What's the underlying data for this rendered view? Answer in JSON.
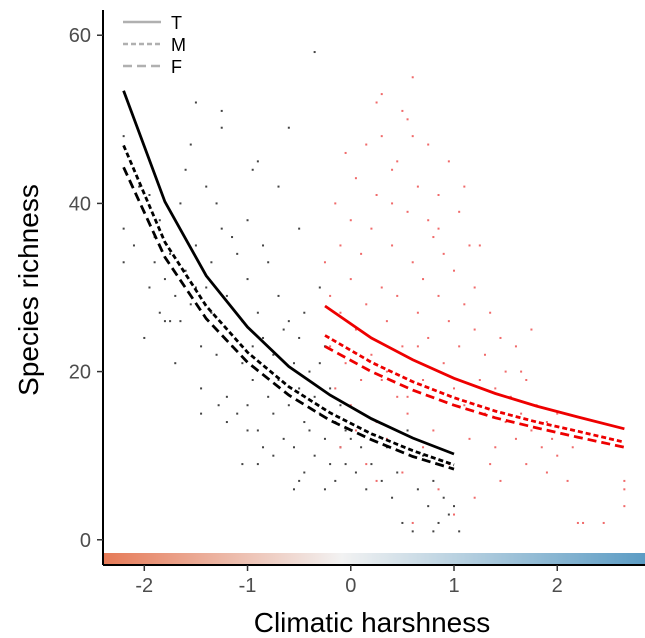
{
  "chart_data": {
    "type": "scatter",
    "xlabel": "Climatic harshness",
    "ylabel": "Species richness",
    "xlim": [
      -2.4,
      2.85
    ],
    "ylim": [
      -3,
      63
    ],
    "x_ticks": [
      -2,
      -1,
      0,
      1,
      2
    ],
    "y_ticks": [
      0,
      20,
      40,
      60
    ],
    "grid": false,
    "legend_position": "top-left",
    "legend": [
      {
        "label": "T",
        "dash": "solid"
      },
      {
        "label": "M",
        "dash": "dotted"
      },
      {
        "label": "F",
        "dash": "dashed"
      }
    ],
    "colorbar": {
      "from": "#e67a57",
      "mid": "#f2f2f2",
      "to": "#5c9cc4",
      "range": [
        -2.4,
        2.85
      ]
    },
    "colors": {
      "group1": "#000000",
      "group2": "#ee0000"
    },
    "curves": [
      {
        "group": "black",
        "type": "T",
        "x": [
          -2.2,
          -1.8,
          -1.4,
          -1.0,
          -0.6,
          -0.2,
          0.2,
          0.6,
          1.0
        ],
        "y": [
          53.4,
          40.2,
          31.4,
          25.3,
          20.6,
          17.2,
          14.4,
          12.1,
          10.2
        ]
      },
      {
        "group": "black",
        "type": "M",
        "x": [
          -2.2,
          -1.8,
          -1.4,
          -1.0,
          -0.6,
          -0.2,
          0.2,
          0.6,
          1.0
        ],
        "y": [
          46.9,
          35.4,
          27.8,
          22.3,
          18.2,
          15.1,
          12.6,
          10.6,
          8.9
        ]
      },
      {
        "group": "black",
        "type": "F",
        "x": [
          -2.2,
          -1.8,
          -1.4,
          -1.0,
          -0.6,
          -0.2,
          0.2,
          0.6,
          1.0
        ],
        "y": [
          44.3,
          33.6,
          26.3,
          21.1,
          17.2,
          14.2,
          11.9,
          9.9,
          8.4
        ]
      },
      {
        "group": "red",
        "type": "T",
        "x": [
          -0.25,
          0.2,
          0.6,
          1.0,
          1.4,
          1.8,
          2.2,
          2.65
        ],
        "y": [
          27.8,
          24.0,
          21.4,
          19.2,
          17.4,
          15.9,
          14.6,
          13.2
        ]
      },
      {
        "group": "red",
        "type": "M",
        "x": [
          -0.25,
          0.2,
          0.6,
          1.0,
          1.4,
          1.8,
          2.2,
          2.65
        ],
        "y": [
          24.3,
          21.1,
          18.8,
          16.9,
          15.3,
          14.0,
          12.9,
          11.6
        ]
      },
      {
        "group": "red",
        "type": "F",
        "x": [
          -0.25,
          0.2,
          0.6,
          1.0,
          1.4,
          1.8,
          2.2,
          2.65
        ],
        "y": [
          23.0,
          20.0,
          17.8,
          16.0,
          14.5,
          13.3,
          12.2,
          11.0
        ]
      }
    ],
    "points_black": [
      [
        -2.2,
        33
      ],
      [
        -2.2,
        37
      ],
      [
        -2.2,
        48
      ],
      [
        -2.1,
        44
      ],
      [
        -2.1,
        35
      ],
      [
        -2.05,
        42
      ],
      [
        -2.0,
        39
      ],
      [
        -1.95,
        41
      ],
      [
        -1.95,
        30
      ],
      [
        -1.9,
        36
      ],
      [
        -1.85,
        27
      ],
      [
        -1.85,
        38
      ],
      [
        -1.8,
        31
      ],
      [
        -1.75,
        34
      ],
      [
        -1.7,
        29
      ],
      [
        -1.7,
        21
      ],
      [
        -1.65,
        26
      ],
      [
        -1.6,
        44
      ],
      [
        -1.6,
        32
      ],
      [
        -1.55,
        28
      ],
      [
        -1.5,
        52
      ],
      [
        -1.5,
        35
      ],
      [
        -1.45,
        23
      ],
      [
        -1.45,
        18
      ],
      [
        -1.4,
        42
      ],
      [
        -1.4,
        30
      ],
      [
        -1.35,
        27
      ],
      [
        -1.3,
        40
      ],
      [
        -1.3,
        22
      ],
      [
        -1.28,
        16
      ],
      [
        -1.25,
        37
      ],
      [
        -1.2,
        29
      ],
      [
        -1.2,
        17
      ],
      [
        -1.15,
        23
      ],
      [
        -1.1,
        34
      ],
      [
        -1.1,
        15
      ],
      [
        -1.05,
        26
      ],
      [
        -1.05,
        21
      ],
      [
        -1.0,
        38
      ],
      [
        -1.0,
        31
      ],
      [
        -1.0,
        16
      ],
      [
        -0.95,
        19
      ],
      [
        -0.9,
        27
      ],
      [
        -0.9,
        13
      ],
      [
        -0.85,
        24
      ],
      [
        -0.8,
        33
      ],
      [
        -0.8,
        17
      ],
      [
        -0.75,
        22
      ],
      [
        -0.75,
        15
      ],
      [
        -0.7,
        29
      ],
      [
        -0.7,
        19
      ],
      [
        -0.65,
        12
      ],
      [
        -0.6,
        26
      ],
      [
        -0.6,
        16
      ],
      [
        -0.55,
        21
      ],
      [
        -0.55,
        11
      ],
      [
        -0.5,
        24
      ],
      [
        -0.5,
        18
      ],
      [
        -0.45,
        14
      ],
      [
        -0.45,
        8
      ],
      [
        -0.4,
        20
      ],
      [
        -0.4,
        13
      ],
      [
        -0.35,
        17
      ],
      [
        -0.35,
        10
      ],
      [
        -0.3,
        15
      ],
      [
        -0.3,
        21
      ],
      [
        -0.25,
        12
      ],
      [
        -0.2,
        18
      ],
      [
        -0.2,
        9
      ],
      [
        -0.15,
        14
      ],
      [
        -0.1,
        16
      ],
      [
        -0.1,
        11
      ],
      [
        -0.05,
        13
      ],
      [
        -0.55,
        6
      ],
      [
        -0.9,
        9
      ],
      [
        -1.2,
        14
      ],
      [
        -1.75,
        26
      ],
      [
        -2.0,
        24
      ],
      [
        -0.6,
        49
      ],
      [
        -0.9,
        45
      ],
      [
        -1.55,
        47
      ],
      [
        -1.25,
        49
      ],
      [
        -1.25,
        51
      ],
      [
        -0.35,
        58
      ],
      [
        -0.95,
        44
      ],
      [
        -0.7,
        42
      ],
      [
        -1.65,
        40
      ],
      [
        -1.35,
        33
      ],
      [
        -1.15,
        36
      ],
      [
        -0.85,
        35
      ],
      [
        -0.5,
        37
      ],
      [
        -0.3,
        30
      ],
      [
        -0.65,
        25
      ],
      [
        -0.45,
        27
      ],
      [
        -1.5,
        30
      ],
      [
        -1.8,
        26
      ],
      [
        -1.9,
        33
      ],
      [
        -0.25,
        23
      ],
      [
        -0.85,
        11
      ],
      [
        -1.05,
        9
      ],
      [
        -0.75,
        10
      ],
      [
        -0.5,
        7
      ],
      [
        -0.25,
        6
      ],
      [
        -0.15,
        7
      ],
      [
        -0.05,
        9
      ],
      [
        0.0,
        12
      ],
      [
        0.05,
        8
      ],
      [
        0.1,
        11
      ],
      [
        0.15,
        6
      ],
      [
        0.2,
        9
      ],
      [
        0.3,
        7
      ],
      [
        0.35,
        11
      ],
      [
        0.4,
        5
      ],
      [
        0.45,
        8
      ],
      [
        0.5,
        2
      ],
      [
        0.55,
        13
      ],
      [
        0.6,
        1
      ],
      [
        0.65,
        6
      ],
      [
        0.7,
        10
      ],
      [
        0.75,
        4
      ],
      [
        0.8,
        7
      ],
      [
        0.85,
        2
      ],
      [
        0.9,
        5
      ],
      [
        0.95,
        3
      ],
      [
        1.0,
        4
      ],
      [
        1.05,
        1
      ],
      [
        0.8,
        1
      ],
      [
        -1.45,
        15
      ],
      [
        -1.0,
        13
      ],
      [
        -0.95,
        23
      ]
    ],
    "points_red": [
      [
        -0.25,
        33
      ],
      [
        -0.2,
        29
      ],
      [
        -0.2,
        23
      ],
      [
        -0.15,
        40
      ],
      [
        -0.15,
        18
      ],
      [
        -0.1,
        35
      ],
      [
        -0.1,
        27
      ],
      [
        -0.05,
        46
      ],
      [
        -0.05,
        21
      ],
      [
        0.0,
        38
      ],
      [
        0.0,
        31
      ],
      [
        0.0,
        16
      ],
      [
        0.05,
        25
      ],
      [
        0.05,
        43
      ],
      [
        0.1,
        19
      ],
      [
        0.1,
        34
      ],
      [
        0.15,
        47
      ],
      [
        0.15,
        28
      ],
      [
        0.2,
        22
      ],
      [
        0.2,
        37
      ],
      [
        0.25,
        41
      ],
      [
        0.25,
        14
      ],
      [
        0.3,
        30
      ],
      [
        0.3,
        48
      ],
      [
        0.35,
        26
      ],
      [
        0.35,
        20
      ],
      [
        0.4,
        44
      ],
      [
        0.4,
        35
      ],
      [
        0.45,
        17
      ],
      [
        0.45,
        29
      ],
      [
        0.5,
        51
      ],
      [
        0.5,
        23
      ],
      [
        0.55,
        39
      ],
      [
        0.55,
        15
      ],
      [
        0.6,
        33
      ],
      [
        0.6,
        55
      ],
      [
        0.65,
        27
      ],
      [
        0.65,
        42
      ],
      [
        0.7,
        19
      ],
      [
        0.7,
        31
      ],
      [
        0.75,
        47
      ],
      [
        0.75,
        24
      ],
      [
        0.8,
        36
      ],
      [
        0.8,
        13
      ],
      [
        0.85,
        29
      ],
      [
        0.85,
        41
      ],
      [
        0.9,
        21
      ],
      [
        0.9,
        34
      ],
      [
        0.95,
        45
      ],
      [
        0.95,
        26
      ],
      [
        1.0,
        18
      ],
      [
        1.0,
        32
      ],
      [
        1.05,
        39
      ],
      [
        1.05,
        23
      ],
      [
        1.1,
        28
      ],
      [
        1.1,
        16
      ],
      [
        1.15,
        35
      ],
      [
        1.15,
        12
      ],
      [
        1.2,
        25
      ],
      [
        1.2,
        30
      ],
      [
        1.25,
        19
      ],
      [
        1.3,
        22
      ],
      [
        1.3,
        15
      ],
      [
        1.35,
        27
      ],
      [
        1.4,
        18
      ],
      [
        1.4,
        11
      ],
      [
        1.45,
        24
      ],
      [
        1.5,
        14
      ],
      [
        1.5,
        20
      ],
      [
        1.55,
        17
      ],
      [
        1.6,
        12
      ],
      [
        1.6,
        23
      ],
      [
        1.65,
        15
      ],
      [
        1.7,
        19
      ],
      [
        1.7,
        9
      ],
      [
        1.75,
        13
      ],
      [
        1.8,
        16
      ],
      [
        1.85,
        11
      ],
      [
        1.9,
        14
      ],
      [
        1.9,
        8
      ],
      [
        1.95,
        12
      ],
      [
        2.0,
        10
      ],
      [
        2.0,
        15
      ],
      [
        2.1,
        7
      ],
      [
        2.15,
        11
      ],
      [
        2.2,
        2
      ],
      [
        2.25,
        2
      ],
      [
        2.45,
        2
      ],
      [
        2.65,
        6
      ],
      [
        2.65,
        4
      ],
      [
        2.65,
        7
      ],
      [
        0.3,
        53
      ],
      [
        0.55,
        50
      ],
      [
        0.6,
        48
      ],
      [
        0.25,
        52
      ],
      [
        0.45,
        45
      ],
      [
        0.85,
        37
      ],
      [
        0.75,
        38
      ],
      [
        0.4,
        40
      ],
      [
        1.1,
        42
      ],
      [
        1.25,
        35
      ],
      [
        0.65,
        23
      ],
      [
        0.35,
        12
      ],
      [
        0.15,
        9
      ],
      [
        0.5,
        8
      ],
      [
        0.85,
        6
      ],
      [
        1.2,
        5
      ],
      [
        1.45,
        7
      ],
      [
        1.0,
        3
      ],
      [
        0.6,
        2
      ],
      [
        -0.1,
        11
      ],
      [
        0.05,
        13
      ],
      [
        0.25,
        7
      ],
      [
        0.7,
        11
      ],
      [
        0.95,
        9
      ],
      [
        1.35,
        9
      ],
      [
        1.65,
        20
      ],
      [
        1.75,
        25
      ],
      [
        0.3,
        19
      ],
      [
        0.55,
        17
      ]
    ]
  }
}
